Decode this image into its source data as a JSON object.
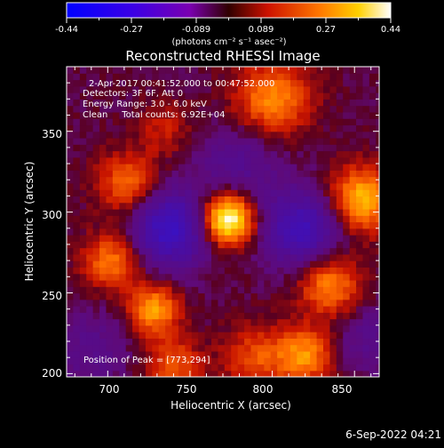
{
  "colorbar": {
    "ticks": [
      "-0.44",
      "-0.27",
      "-0.089",
      "0.089",
      "0.27",
      "0.44"
    ],
    "unit_label": "(photons cm⁻² s⁻¹ asec⁻²)",
    "range": [
      -0.44,
      0.44
    ]
  },
  "chart_data": {
    "type": "heatmap",
    "title": "Reconstructed RHESSI Image",
    "xlabel": "Heliocentric X (arcsec)",
    "ylabel": "Heliocentric Y (arcsec)",
    "xlim": [
      675,
      865
    ],
    "ylim": [
      198,
      390
    ],
    "xticks": [
      700,
      750,
      800,
      850
    ],
    "yticks": [
      200,
      250,
      300,
      350
    ],
    "annotations": [
      "2-Apr-2017 00:41:52.000 to 00:47:52.000",
      "Detectors: 3F 6F, Att 0",
      "Energy Range: 3.0 - 6.0 keV",
      "Clean     Total counts: 6.92E+04"
    ],
    "peak_label": "Position of Peak = [773,294]",
    "peak": [
      773,
      294
    ],
    "sources": [
      {
        "x": 773,
        "y": 296,
        "amp": 0.44,
        "sigma": 11
      },
      {
        "x": 855,
        "y": 308,
        "amp": 0.3,
        "sigma": 14
      },
      {
        "x": 800,
        "y": 370,
        "amp": 0.24,
        "sigma": 16
      },
      {
        "x": 712,
        "y": 318,
        "amp": 0.2,
        "sigma": 13
      },
      {
        "x": 702,
        "y": 270,
        "amp": 0.22,
        "sigma": 12
      },
      {
        "x": 728,
        "y": 240,
        "amp": 0.26,
        "sigma": 11
      },
      {
        "x": 740,
        "y": 205,
        "amp": 0.18,
        "sigma": 12
      },
      {
        "x": 835,
        "y": 255,
        "amp": 0.24,
        "sigma": 13
      },
      {
        "x": 820,
        "y": 212,
        "amp": 0.24,
        "sigma": 12
      },
      {
        "x": 790,
        "y": 210,
        "amp": 0.16,
        "sigma": 14
      },
      {
        "x": 735,
        "y": 352,
        "amp": 0.1,
        "sigma": 12
      },
      {
        "x": 738,
        "y": 290,
        "amp": -0.32,
        "sigma": 16
      },
      {
        "x": 818,
        "y": 290,
        "amp": -0.28,
        "sigma": 16
      },
      {
        "x": 780,
        "y": 330,
        "amp": -0.12,
        "sigma": 18
      },
      {
        "x": 690,
        "y": 215,
        "amp": -0.1,
        "sigma": 16
      },
      {
        "x": 860,
        "y": 222,
        "amp": -0.1,
        "sigma": 15
      }
    ]
  },
  "footer": {
    "timestamp": "6-Sep-2022 04:21"
  }
}
